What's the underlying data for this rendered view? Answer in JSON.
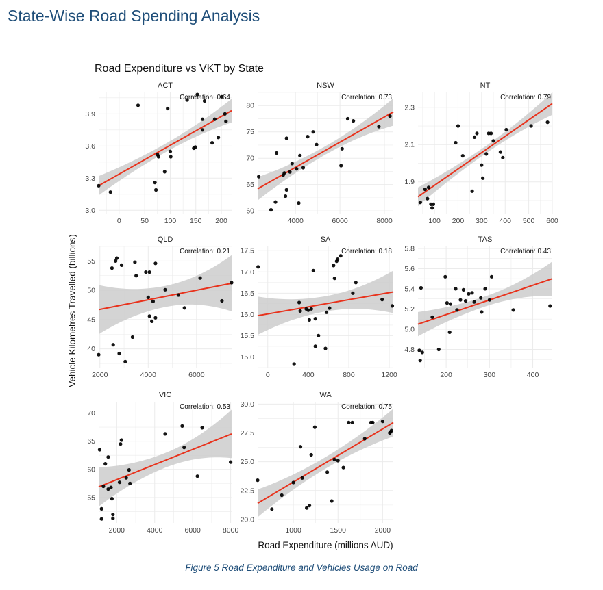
{
  "page_heading": "State-Wise Road Spending Analysis",
  "caption": "Figure 5 Road Expenditure and Vehicles Usage on Road",
  "colors": {
    "points": "#000000",
    "fit_line": "#e8321c",
    "ribbon": "#cccccc",
    "grid": "#ebebeb",
    "heading": "#1f4e79"
  },
  "chart_data": {
    "type": "scatter",
    "title": "Road Expenditure vs VKT by State",
    "xlabel": "Road Expenditure (millions AUD)",
    "ylabel": "Vehicle Kilometres Travelled (billions)",
    "grid": true,
    "trend": "linear fit with confidence ribbon",
    "panels": [
      {
        "name": "ACT",
        "correlation_label": "Correlation: 0.64",
        "xlim": [
          -40,
          220
        ],
        "ylim": [
          2.97,
          4.1
        ],
        "xticks": [
          0,
          50,
          100,
          150,
          200
        ],
        "xtick_labels": [
          "0",
          "50",
          "100",
          "150",
          "200"
        ],
        "yticks": [
          3.0,
          3.3,
          3.6,
          3.9
        ],
        "ytick_labels": [
          "3.0",
          "3.3",
          "3.6",
          "3.9"
        ],
        "fit": {
          "x": [
            -40,
            220
          ],
          "y": [
            3.23,
            3.93
          ]
        },
        "band": [
          0.09,
          0.04,
          0.11
        ],
        "points": [
          [
            -40,
            3.23
          ],
          [
            -17,
            3.17
          ],
          [
            37,
            3.98
          ],
          [
            70,
            3.26
          ],
          [
            72,
            3.19
          ],
          [
            75,
            3.52
          ],
          [
            77,
            3.5
          ],
          [
            89,
            3.36
          ],
          [
            95,
            3.95
          ],
          [
            100,
            3.55
          ],
          [
            101,
            3.5
          ],
          [
            133,
            4.03
          ],
          [
            146,
            3.58
          ],
          [
            149,
            3.59
          ],
          [
            153,
            4.08
          ],
          [
            163,
            3.85
          ],
          [
            163,
            3.75
          ],
          [
            167,
            4.02
          ],
          [
            182,
            3.63
          ],
          [
            187,
            3.85
          ],
          [
            194,
            3.68
          ],
          [
            201,
            4.06
          ],
          [
            207,
            3.9
          ],
          [
            209,
            3.83
          ]
        ]
      },
      {
        "name": "NSW",
        "correlation_label": "Correlation: 0.73",
        "xlim": [
          2300,
          8400
        ],
        "ylim": [
          59.5,
          82.5
        ],
        "xticks": [
          4000,
          6000,
          8000
        ],
        "xtick_labels": [
          "4000",
          "6000",
          "8000"
        ],
        "yticks": [
          60,
          65,
          70,
          75,
          80
        ],
        "ytick_labels": [
          "60",
          "65",
          "70",
          "75",
          "80"
        ],
        "fit": {
          "x": [
            2300,
            8400
          ],
          "y": [
            64.2,
            78.8
          ]
        },
        "band": [
          2.2,
          0.8,
          2.6
        ],
        "points": [
          [
            2350,
            66.5
          ],
          [
            2900,
            60.2
          ],
          [
            3100,
            61.7
          ],
          [
            3150,
            71
          ],
          [
            3450,
            66.8
          ],
          [
            3500,
            67.2
          ],
          [
            3550,
            62.8
          ],
          [
            3600,
            64
          ],
          [
            3600,
            73.8
          ],
          [
            3750,
            67.4
          ],
          [
            3850,
            69
          ],
          [
            4050,
            68
          ],
          [
            4150,
            61.5
          ],
          [
            4200,
            70.5
          ],
          [
            4350,
            68.2
          ],
          [
            4550,
            74.1
          ],
          [
            4800,
            75
          ],
          [
            4950,
            72.6
          ],
          [
            6050,
            68.6
          ],
          [
            6100,
            71.8
          ],
          [
            6350,
            77.5
          ],
          [
            6600,
            77.1
          ],
          [
            7750,
            76
          ],
          [
            8250,
            78
          ]
        ]
      },
      {
        "name": "NT",
        "correlation_label": "Correlation: 0.79",
        "xlim": [
          30,
          600
        ],
        "ylim": [
          1.73,
          2.38
        ],
        "xticks": [
          100,
          200,
          300,
          400,
          500,
          600
        ],
        "xtick_labels": [
          "100",
          "200",
          "300",
          "400",
          "500",
          "600"
        ],
        "yticks": [
          1.9,
          2.1,
          2.3
        ],
        "ytick_labels": [
          "1.9",
          "2.1",
          "2.3"
        ],
        "fit": {
          "x": [
            30,
            600
          ],
          "y": [
            1.82,
            2.32
          ]
        },
        "band": [
          0.05,
          0.02,
          0.06
        ],
        "points": [
          [
            40,
            1.79
          ],
          [
            60,
            1.86
          ],
          [
            70,
            1.81
          ],
          [
            75,
            1.87
          ],
          [
            85,
            1.78
          ],
          [
            90,
            1.76
          ],
          [
            95,
            1.78
          ],
          [
            190,
            2.11
          ],
          [
            200,
            2.2
          ],
          [
            220,
            2.04
          ],
          [
            260,
            1.85
          ],
          [
            270,
            2.14
          ],
          [
            280,
            2.16
          ],
          [
            300,
            1.99
          ],
          [
            305,
            1.92
          ],
          [
            320,
            2.05
          ],
          [
            330,
            2.16
          ],
          [
            340,
            2.16
          ],
          [
            350,
            2.12
          ],
          [
            380,
            2.06
          ],
          [
            390,
            2.03
          ],
          [
            405,
            2.18
          ],
          [
            510,
            2.2
          ],
          [
            580,
            2.22
          ]
        ]
      },
      {
        "name": "QLD",
        "correlation_label": "Correlation: 0.21",
        "xlim": [
          1950,
          7450
        ],
        "ylim": [
          36.8,
          57.5
        ],
        "xticks": [
          2000,
          4000,
          6000
        ],
        "xtick_labels": [
          "2000",
          "4000",
          "6000"
        ],
        "yticks": [
          40,
          45,
          50,
          55
        ],
        "ytick_labels": [
          "40",
          "45",
          "50",
          "55"
        ],
        "fit": {
          "x": [
            1950,
            7450
          ],
          "y": [
            46.7,
            51.2
          ]
        },
        "band": [
          4.2,
          1.8,
          4.8
        ],
        "points": [
          [
            1950,
            39
          ],
          [
            2500,
            53.8
          ],
          [
            2550,
            40.7
          ],
          [
            2650,
            55
          ],
          [
            2700,
            55.5
          ],
          [
            2800,
            39.2
          ],
          [
            2900,
            54.3
          ],
          [
            3050,
            37.8
          ],
          [
            3350,
            42
          ],
          [
            3450,
            54.8
          ],
          [
            3500,
            52.5
          ],
          [
            3900,
            53.1
          ],
          [
            4000,
            48.8
          ],
          [
            4050,
            45.6
          ],
          [
            4050,
            53.1
          ],
          [
            4150,
            44.7
          ],
          [
            4200,
            48.1
          ],
          [
            4300,
            45.3
          ],
          [
            4300,
            54.6
          ],
          [
            4700,
            50.1
          ],
          [
            5250,
            49.2
          ],
          [
            5500,
            47
          ],
          [
            6150,
            52.1
          ],
          [
            7050,
            48.2
          ],
          [
            7450,
            51.3
          ]
        ]
      },
      {
        "name": "SA",
        "correlation_label": "Correlation: 0.18",
        "xlim": [
          -100,
          1240
        ],
        "ylim": [
          14.75,
          17.6
        ],
        "xticks": [
          0,
          400,
          800,
          1200
        ],
        "xtick_labels": [
          "0",
          "400",
          "800",
          "1200"
        ],
        "yticks": [
          15.0,
          15.5,
          16.0,
          16.5,
          17.0,
          17.5
        ],
        "ytick_labels": [
          "15.0",
          "15.5",
          "16.0",
          "16.5",
          "17.0",
          "17.5"
        ],
        "fit": {
          "x": [
            -100,
            1240
          ],
          "y": [
            15.97,
            16.53
          ]
        },
        "band": [
          0.45,
          0.18,
          0.5
        ],
        "points": [
          [
            -95,
            17.12
          ],
          [
            260,
            14.83
          ],
          [
            310,
            16.28
          ],
          [
            320,
            16.08
          ],
          [
            380,
            16.13
          ],
          [
            400,
            16.1
          ],
          [
            410,
            15.87
          ],
          [
            430,
            16.13
          ],
          [
            450,
            17.03
          ],
          [
            470,
            15.9
          ],
          [
            470,
            15.25
          ],
          [
            500,
            15.5
          ],
          [
            570,
            15.2
          ],
          [
            580,
            16.05
          ],
          [
            610,
            16.15
          ],
          [
            650,
            17.15
          ],
          [
            660,
            16.85
          ],
          [
            680,
            17.25
          ],
          [
            690,
            17.3
          ],
          [
            720,
            17.38
          ],
          [
            840,
            16.5
          ],
          [
            870,
            16.75
          ],
          [
            1130,
            16.35
          ],
          [
            1230,
            16.2
          ]
        ]
      },
      {
        "name": "TAS",
        "correlation_label": "Correlation: 0.43",
        "xlim": [
          135,
          445
        ],
        "ylim": [
          4.62,
          5.82
        ],
        "xticks": [
          200,
          300,
          400
        ],
        "xtick_labels": [
          "200",
          "300",
          "400"
        ],
        "yticks": [
          4.8,
          5.0,
          5.2,
          5.4,
          5.6,
          5.8
        ],
        "ytick_labels": [
          "4.8",
          "5.0",
          "5.2",
          "5.4",
          "5.6",
          "5.8"
        ],
        "fit": {
          "x": [
            135,
            445
          ],
          "y": [
            5.05,
            5.5
          ]
        },
        "band": [
          0.12,
          0.05,
          0.17
        ],
        "points": [
          [
            138,
            4.79
          ],
          [
            140,
            4.69
          ],
          [
            142,
            5.41
          ],
          [
            145,
            4.77
          ],
          [
            168,
            5.12
          ],
          [
            183,
            4.8
          ],
          [
            198,
            5.52
          ],
          [
            202,
            5.26
          ],
          [
            208,
            4.97
          ],
          [
            210,
            5.25
          ],
          [
            222,
            5.4
          ],
          [
            225,
            5.19
          ],
          [
            233,
            5.29
          ],
          [
            240,
            5.39
          ],
          [
            245,
            5.28
          ],
          [
            252,
            5.35
          ],
          [
            260,
            5.36
          ],
          [
            265,
            5.27
          ],
          [
            280,
            5.31
          ],
          [
            282,
            5.17
          ],
          [
            290,
            5.4
          ],
          [
            300,
            5.29
          ],
          [
            305,
            5.52
          ],
          [
            355,
            5.19
          ],
          [
            440,
            5.23
          ]
        ]
      },
      {
        "name": "VIC",
        "correlation_label": "Correlation: 0.53",
        "xlim": [
          1050,
          8050
        ],
        "ylim": [
          50.5,
          72
        ],
        "xticks": [
          2000,
          4000,
          6000,
          8000
        ],
        "xtick_labels": [
          "2000",
          "4000",
          "6000",
          "8000"
        ],
        "yticks": [
          55,
          60,
          65,
          70
        ],
        "ytick_labels": [
          "55",
          "60",
          "65",
          "70"
        ],
        "fit": {
          "x": [
            1050,
            8050
          ],
          "y": [
            56.9,
            66.3
          ]
        },
        "band": [
          3.5,
          1.3,
          4.3
        ],
        "points": [
          [
            1100,
            63.5
          ],
          [
            1200,
            53
          ],
          [
            1200,
            51.2
          ],
          [
            1300,
            57
          ],
          [
            1400,
            61
          ],
          [
            1550,
            62.2
          ],
          [
            1550,
            56.5
          ],
          [
            1700,
            56.8
          ],
          [
            1750,
            54.8
          ],
          [
            1800,
            52
          ],
          [
            1800,
            51.3
          ],
          [
            2150,
            57.7
          ],
          [
            2200,
            64.5
          ],
          [
            2250,
            65.2
          ],
          [
            2500,
            58.5
          ],
          [
            2650,
            59.9
          ],
          [
            2700,
            57.5
          ],
          [
            4550,
            66.3
          ],
          [
            5450,
            67.7
          ],
          [
            5550,
            63.9
          ],
          [
            6250,
            58.8
          ],
          [
            6500,
            67.4
          ],
          [
            8000,
            61.3
          ]
        ]
      },
      {
        "name": "WA",
        "correlation_label": "Correlation: 0.75",
        "xlim": [
          600,
          2120
        ],
        "ylim": [
          19.7,
          30.2
        ],
        "xticks": [
          1000,
          1500,
          2000
        ],
        "xtick_labels": [
          "1000",
          "1500",
          "2000"
        ],
        "yticks": [
          20.0,
          22.5,
          25.0,
          27.5,
          30.0
        ],
        "ytick_labels": [
          "20.0",
          "22.5",
          "25.0",
          "27.5",
          "30.0"
        ],
        "fit": {
          "x": [
            600,
            2120
          ],
          "y": [
            21.4,
            28.4
          ]
        },
        "band": [
          1.2,
          0.5,
          1.2
        ],
        "points": [
          [
            600,
            23.4
          ],
          [
            760,
            20.9
          ],
          [
            870,
            22.1
          ],
          [
            1000,
            23.2
          ],
          [
            1080,
            26.3
          ],
          [
            1100,
            23.6
          ],
          [
            1150,
            21
          ],
          [
            1180,
            21.2
          ],
          [
            1200,
            25.6
          ],
          [
            1240,
            28
          ],
          [
            1380,
            24.1
          ],
          [
            1430,
            21.6
          ],
          [
            1460,
            25.2
          ],
          [
            1500,
            25.1
          ],
          [
            1560,
            24.5
          ],
          [
            1620,
            28.4
          ],
          [
            1660,
            28.4
          ],
          [
            1800,
            27
          ],
          [
            1870,
            28.4
          ],
          [
            1890,
            28.4
          ],
          [
            2000,
            28.5
          ],
          [
            2080,
            27.5
          ],
          [
            2090,
            27.6
          ],
          [
            2100,
            27.7
          ]
        ]
      }
    ]
  }
}
